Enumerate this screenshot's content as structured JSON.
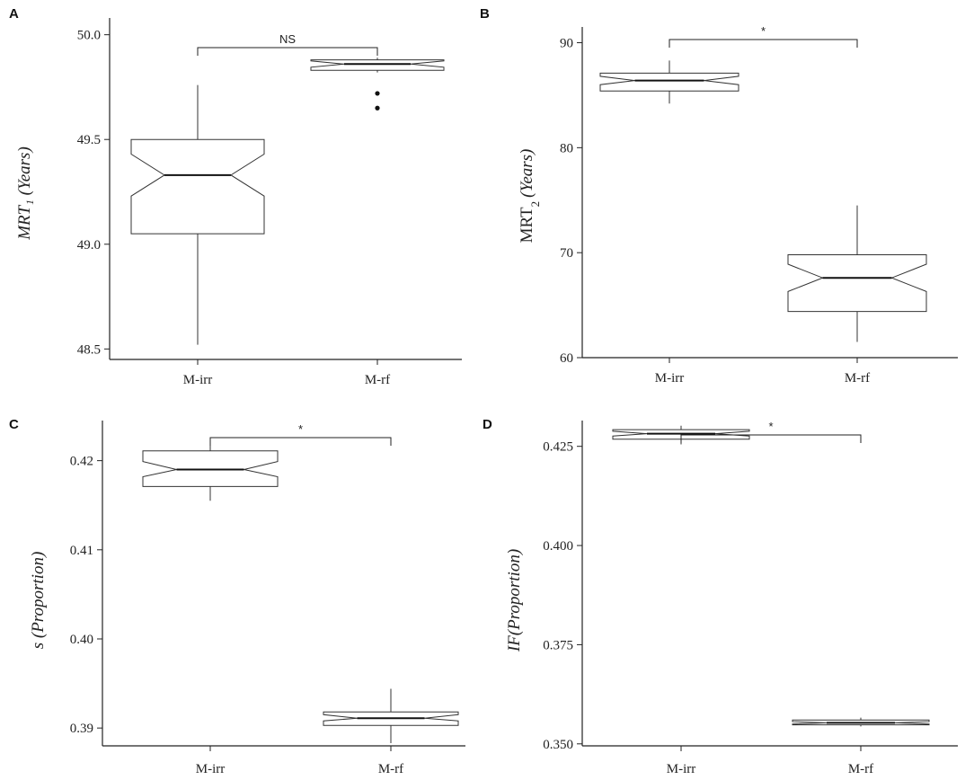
{
  "chart_data": [
    {
      "panel": "A",
      "type": "box",
      "categories": [
        "M-irr",
        "M-rf"
      ],
      "ylabel": "MRT₁ (Years)",
      "ylim": [
        48.45,
        50.08
      ],
      "yticks": [
        "48.5",
        "49.0",
        "49.5",
        "50.0"
      ],
      "ytick_values": [
        48.5,
        49.0,
        49.5,
        50.0
      ],
      "boxes": [
        {
          "name": "M-irr",
          "whisker_low": 48.52,
          "q1": 49.05,
          "median": 49.33,
          "q3": 49.5,
          "whisker_high": 49.76,
          "notch_low": 49.23,
          "notch_high": 49.43,
          "outliers": []
        },
        {
          "name": "M-rf",
          "whisker_low": 49.82,
          "q1": 49.83,
          "median": 49.86,
          "q3": 49.88,
          "whisker_high": 49.89,
          "notch_low": 49.845,
          "notch_high": 49.875,
          "outliers": [
            49.72,
            49.65
          ]
        }
      ],
      "significance": "NS"
    },
    {
      "panel": "B",
      "type": "box",
      "categories": [
        "M-irr",
        "M-rf"
      ],
      "ylabel_main": "MRT",
      "ylabel_sub": "2",
      "ylabel_unit": "(Years)",
      "ylim": [
        60,
        91.5
      ],
      "yticks": [
        "60",
        "70",
        "80",
        "90"
      ],
      "ytick_values": [
        60,
        70,
        80,
        90
      ],
      "boxes": [
        {
          "name": "M-irr",
          "whisker_low": 84.2,
          "q1": 85.4,
          "median": 86.4,
          "q3": 87.1,
          "whisker_high": 88.3,
          "notch_low": 86.0,
          "notch_high": 86.8,
          "outliers": []
        },
        {
          "name": "M-rf",
          "whisker_low": 61.5,
          "q1": 64.4,
          "median": 67.6,
          "q3": 69.8,
          "whisker_high": 74.5,
          "notch_low": 66.3,
          "notch_high": 68.9,
          "outliers": []
        }
      ],
      "significance": "*"
    },
    {
      "panel": "C",
      "type": "box",
      "categories": [
        "M-irr",
        "M-rf"
      ],
      "ylabel": "s (Proportion)",
      "ylim": [
        0.388,
        0.4245
      ],
      "yticks": [
        "0.39",
        "0.40",
        "0.41",
        "0.42"
      ],
      "ytick_values": [
        0.39,
        0.4,
        0.41,
        0.42
      ],
      "boxes": [
        {
          "name": "M-irr",
          "whisker_low": 0.4155,
          "q1": 0.4171,
          "median": 0.419,
          "q3": 0.4211,
          "whisker_high": 0.4225,
          "notch_low": 0.4182,
          "notch_high": 0.4199,
          "outliers": []
        },
        {
          "name": "M-rf",
          "whisker_low": 0.3883,
          "q1": 0.3903,
          "median": 0.3911,
          "q3": 0.3918,
          "whisker_high": 0.3944,
          "notch_low": 0.3908,
          "notch_high": 0.3915,
          "outliers": []
        }
      ],
      "significance": "*"
    },
    {
      "panel": "D",
      "type": "box",
      "categories": [
        "M-irr",
        "M-rf"
      ],
      "ylabel": "IF(Proportion)",
      "ylim": [
        0.3495,
        0.4315
      ],
      "yticks": [
        "0.350",
        "0.375",
        "0.400",
        "0.425"
      ],
      "ytick_values": [
        0.35,
        0.375,
        0.4,
        0.425
      ],
      "boxes": [
        {
          "name": "M-irr",
          "whisker_low": 0.4255,
          "q1": 0.4268,
          "median": 0.4282,
          "q3": 0.4292,
          "whisker_high": 0.4302,
          "notch_low": 0.4276,
          "notch_high": 0.4288,
          "outliers": []
        },
        {
          "name": "M-rf",
          "whisker_low": 0.3544,
          "q1": 0.3548,
          "median": 0.3553,
          "q3": 0.356,
          "whisker_high": 0.3566,
          "notch_low": 0.355,
          "notch_high": 0.3556,
          "outliers": []
        }
      ],
      "significance": "*"
    }
  ]
}
